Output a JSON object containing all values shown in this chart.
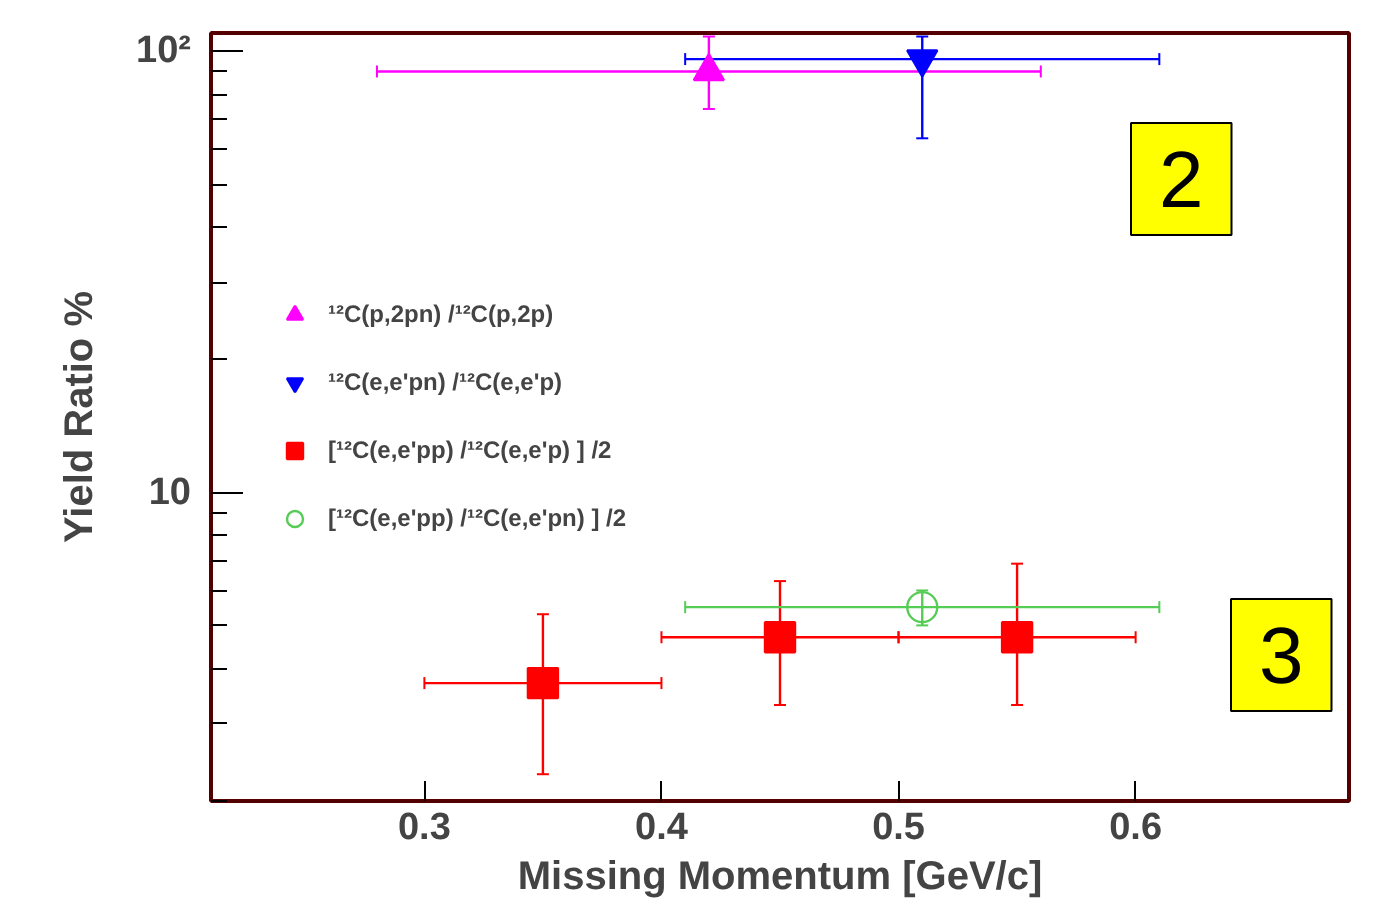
{
  "chart_data": {
    "type": "scatter",
    "xlabel": "Missing Momentum [GeV/c]",
    "ylabel": "Yield Ratio %",
    "xlim": [
      0.21,
      0.69
    ],
    "xticks": [
      0.3,
      0.4,
      0.5,
      0.6
    ],
    "ylim": [
      2,
      110
    ],
    "yticks": [
      10,
      {
        "value": 100,
        "label": "10²"
      }
    ],
    "log": "y",
    "grid": false,
    "legend": "left",
    "series": [
      {
        "name": "¹²C(p,2pn) /¹²C(p,2p)",
        "color": "#ff00ff",
        "marker": "triangle",
        "x": [
          0.42
        ],
        "values": [
          90
        ],
        "errors": [
          [
            74,
            108
          ]
        ],
        "xerrors": [
          [
            0.28,
            0.56
          ]
        ]
      },
      {
        "name": "¹²C(e,e'pn) /¹²C(e,e'p)",
        "color": "#0000ff",
        "marker": "triangle",
        "x": [
          0.51
        ],
        "values": [
          96
        ],
        "errors": [
          [
            63.5,
            108
          ]
        ],
        "xerrors": [
          [
            0.41,
            0.61
          ]
        ]
      },
      {
        "name": "[¹²C(e,e'pp) /¹²C(e,e'p) ] /2",
        "color": "#ff0000",
        "marker": "square",
        "x": [
          0.35,
          0.45,
          0.55
        ],
        "values": [
          3.7,
          4.7,
          4.7
        ],
        "errors": [
          [
            2.3,
            5.3
          ],
          [
            3.3,
            6.3
          ],
          [
            3.3,
            6.9
          ]
        ],
        "xerrors": [
          [
            0.3,
            0.4
          ],
          [
            0.4,
            0.5
          ],
          [
            0.5,
            0.6
          ]
        ]
      },
      {
        "name": "[¹²C(e,e'pp) /¹²C(e,e'pn) ] /2",
        "color": "#55cc55",
        "marker": "circle",
        "x": [
          0.51
        ],
        "values": [
          5.5
        ],
        "errors": [
          [
            5.0,
            6.0
          ]
        ],
        "xerrors": [
          [
            0.41,
            0.61
          ]
        ]
      }
    ],
    "annotations": [
      "2",
      "3"
    ]
  }
}
